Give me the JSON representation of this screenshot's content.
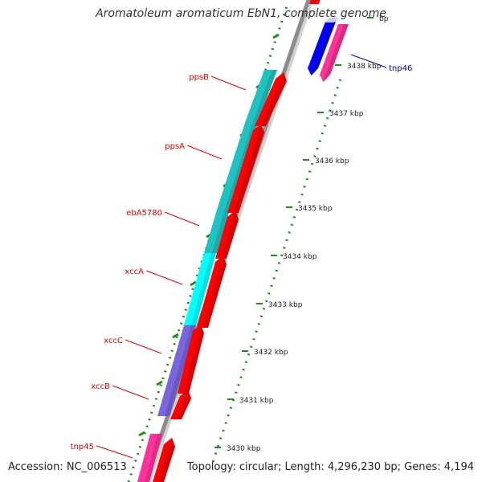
{
  "title": "Aromatoleum aromaticum EbN1, complete genome",
  "footer": {
    "accession": "Accession: NC_006513",
    "summary": "Topology: circular; Length: 4,296,230 bp; Genes: 4,194"
  },
  "colors": {
    "background": "#ffffff",
    "backbone": "#8c8c8c",
    "cds_red": "#ff0000",
    "cds_cyan_dark": "#1fc1c1",
    "cds_cyan_bright": "#00ffff",
    "cds_purple": "#7766dd",
    "cds_pink": "#ff3399",
    "cds_blue": "#0000ff",
    "tick_green": "#1a8f1a",
    "label_red": "#dd0000",
    "label_blue": "#0000aa"
  },
  "kbp_ticks": [
    {
      "kbp": 3430,
      "label": "3430 kbp"
    },
    {
      "kbp": 3431,
      "label": "3431 kbp"
    },
    {
      "kbp": 3432,
      "label": "3432 kbp"
    },
    {
      "kbp": 3433,
      "label": "3433 kbp"
    },
    {
      "kbp": 3434,
      "label": "3434 kbp"
    },
    {
      "kbp": 3435,
      "label": "3435 kbp"
    },
    {
      "kbp": 3436,
      "label": "3436 kbp"
    },
    {
      "kbp": 3437,
      "label": "3437 kbp"
    },
    {
      "kbp": 3438,
      "label": "3438 kbp"
    },
    {
      "kbp": 3439,
      "label": "bp"
    }
  ],
  "genes": [
    {
      "name": "tnp45",
      "color": "cds_pink"
    },
    {
      "name": "xccB",
      "color": "cds_purple"
    },
    {
      "name": "xccC",
      "color": "cds_purple"
    },
    {
      "name": "xccA",
      "color": "cds_cyan_bright"
    },
    {
      "name": "ebA5780",
      "color": "cds_cyan_dark"
    },
    {
      "name": "ppsA",
      "color": "cds_cyan_dark"
    },
    {
      "name": "ppsB",
      "color": "cds_cyan_dark"
    },
    {
      "name": "tnp46",
      "color": "cds_pink"
    }
  ]
}
